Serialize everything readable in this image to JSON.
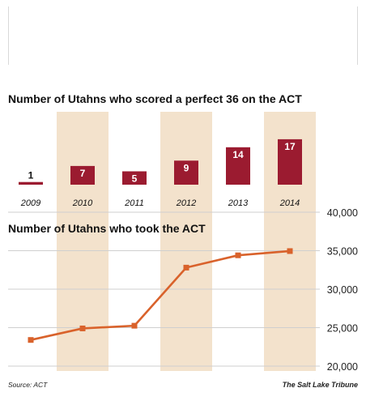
{
  "chart_data": [
    {
      "type": "bar",
      "title": "Number of Utahns who scored a perfect 36 on the ACT",
      "categories": [
        "2009",
        "2010",
        "2011",
        "2012",
        "2013",
        "2014"
      ],
      "values": [
        1,
        7,
        5,
        9,
        14,
        17
      ],
      "data_labels": [
        "1",
        "7",
        "5",
        "9",
        "14",
        "17"
      ],
      "bar_color": "#9b1b30",
      "ylim": [
        0,
        17
      ]
    },
    {
      "type": "line",
      "title": "Number of Utahns who took the ACT",
      "x": [
        "2009",
        "2010",
        "2011",
        "2012",
        "2013",
        "2014"
      ],
      "values": [
        23400,
        24900,
        25250,
        32800,
        34400,
        34950
      ],
      "ylim": [
        20000,
        40000
      ],
      "yticks": [
        20000,
        25000,
        30000,
        35000,
        40000
      ],
      "ytick_labels": [
        "20,000",
        "25,000",
        "30,000",
        "35,000",
        "40,000"
      ],
      "line_color": "#d9622b",
      "grid": true,
      "shaded_columns": [
        "2010",
        "2012",
        "2014"
      ],
      "shade_color": "#f3e2cc"
    }
  ],
  "footer": {
    "source": "Source: ACT",
    "credit": "The Salt Lake Tribune"
  }
}
